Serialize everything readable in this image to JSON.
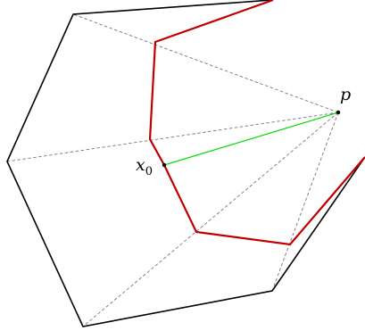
{
  "labels": {
    "point_p": "p",
    "point_x0_main": "x",
    "point_x0_sub": "0"
  },
  "colors": {
    "outer_polygon": "#000000",
    "inner_polygon": "#c00000",
    "green_segment": "#00dd00",
    "dashed_lines": "#777777"
  }
}
